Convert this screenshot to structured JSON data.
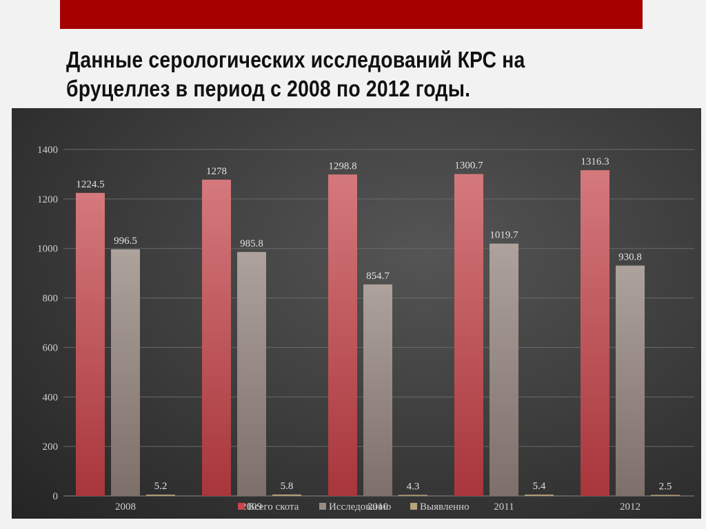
{
  "slide": {
    "title_line1": "Данные серологических исследований КРС на",
    "title_line2": "бруцеллез в период с 2008 по 2012 годы."
  },
  "colors": {
    "accent_bar": "#a50000",
    "series": [
      "#c4484c",
      "#9a8b84",
      "#b8a27c"
    ]
  },
  "chart_data": {
    "type": "bar",
    "title": "",
    "xlabel": "",
    "ylabel": "",
    "categories": [
      "2008",
      "2009",
      "2010",
      "2011",
      "2012"
    ],
    "series": [
      {
        "name": "Всего скота",
        "values": [
          1224.5,
          1278,
          1298.8,
          1300.7,
          1316.3
        ]
      },
      {
        "name": "Исследованно",
        "values": [
          996.5,
          985.8,
          854.7,
          1019.7,
          930.8
        ]
      },
      {
        "name": "Выявленно",
        "values": [
          5.2,
          5.8,
          4.3,
          5.4,
          2.5
        ]
      }
    ],
    "ylim": [
      0,
      1400
    ],
    "yticks": [
      0,
      200,
      400,
      600,
      800,
      1000,
      1200,
      1400
    ],
    "grid": true,
    "legend_position": "bottom",
    "data_labels": true
  }
}
